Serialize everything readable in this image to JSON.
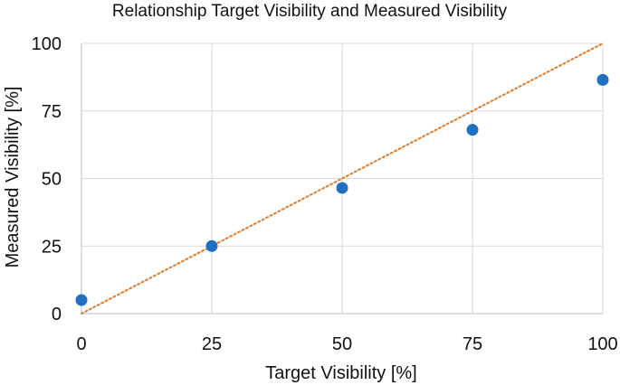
{
  "chart_data": {
    "type": "scatter",
    "title": "Relationship Target Visibility and Measured Visibility",
    "xlabel": "Target Visibility [%]",
    "ylabel": "Measured Visibility [%]",
    "xlim": [
      0,
      100
    ],
    "ylim": [
      0,
      100
    ],
    "xticks": [
      0,
      25,
      50,
      75,
      100
    ],
    "yticks": [
      0,
      25,
      50,
      75,
      100
    ],
    "grid": true,
    "series": [
      {
        "type": "scatter",
        "color": "#1f6fc2",
        "points": [
          {
            "x": 0,
            "y": 5
          },
          {
            "x": 25,
            "y": 25
          },
          {
            "x": 50,
            "y": 46.5
          },
          {
            "x": 75,
            "y": 68
          },
          {
            "x": 100,
            "y": 86.5
          }
        ]
      },
      {
        "type": "line",
        "style": "dotted",
        "color": "#e07b2a",
        "points": [
          {
            "x": 0,
            "y": 0
          },
          {
            "x": 100,
            "y": 100
          }
        ]
      }
    ]
  }
}
